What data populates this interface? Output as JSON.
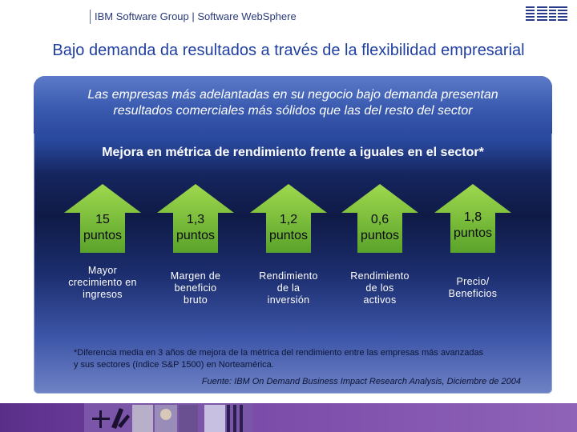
{
  "header": {
    "text": "IBM Software Group | Software WebSphere",
    "logo_name": "ibm-logo"
  },
  "title": "Bajo demanda da resultados a través de la flexibilidad empresarial",
  "panel": {
    "subtitle_line1": "Las empresas más adelantadas en su negocio bajo demanda presentan",
    "subtitle_line2": "resultados comerciales más sólidos que las del resto del sector",
    "heading": "Mejora en métrica de rendimiento frente a iguales en el sector*",
    "metrics": [
      {
        "value_line1": "15",
        "value_line2": "puntos",
        "label": [
          "Mayor",
          "crecimiento en",
          "ingresos"
        ]
      },
      {
        "value_line1": "1,3",
        "value_line2": "puntos",
        "label": [
          "Margen de",
          "beneficio",
          "bruto"
        ]
      },
      {
        "value_line1": "1,2",
        "value_line2": "puntos",
        "label": [
          "Rendimiento",
          "de la",
          "inversión"
        ]
      },
      {
        "value_line1": "0,6",
        "value_line2": "puntos",
        "label": [
          "Rendimiento",
          "de los",
          "activos"
        ]
      },
      {
        "value_line1": "1,8",
        "value_line2": "puntos",
        "label": [
          "Precio/",
          "Beneficios"
        ]
      }
    ],
    "footnote_line1": "*Diferencia media en 3 años de mejora de la métrica del rendimiento entre las empresas más avanzadas",
    "footnote_line2": "y sus sectores (índice S&P 1500) en Norteamérica.",
    "source": "Fuente: IBM On Demand Business Impact Research Analysis, Diciembre de 2004"
  },
  "colors": {
    "title": "#1f3fa3",
    "arrow_green": "#7ec23a",
    "footer_purple": "#6b3d99"
  }
}
